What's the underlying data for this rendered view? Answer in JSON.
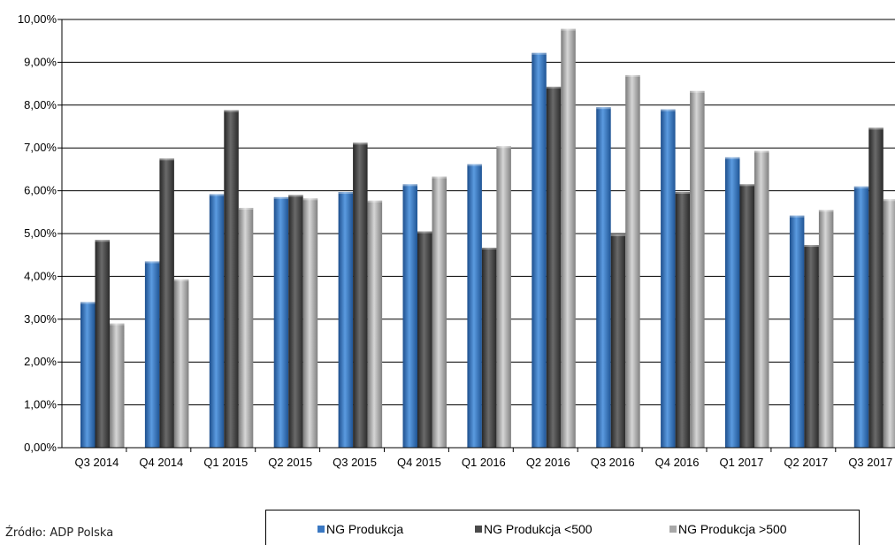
{
  "chart_data": {
    "type": "bar",
    "categories": [
      "Q3 2014",
      "Q4 2014",
      "Q1 2015",
      "Q2 2015",
      "Q3 2015",
      "Q4 2015",
      "Q1 2016",
      "Q2 2016",
      "Q3 2016",
      "Q4 2016",
      "Q1 2017",
      "Q2 2017",
      "Q3 2017"
    ],
    "series": [
      {
        "name": "NG Produkcja",
        "color": "#3a78c2",
        "values": [
          3.4,
          4.35,
          5.92,
          5.85,
          5.97,
          6.15,
          6.62,
          9.22,
          7.95,
          7.9,
          6.78,
          5.42,
          6.1
        ]
      },
      {
        "name": "NG Produkcja <500",
        "color": "#4a4a4a",
        "values": [
          4.85,
          6.75,
          7.88,
          5.9,
          7.12,
          5.05,
          4.67,
          8.43,
          4.98,
          5.97,
          6.15,
          4.73,
          7.47
        ]
      },
      {
        "name": "NG Produkcja >500",
        "color": "#a8a8a8",
        "values": [
          2.9,
          3.93,
          5.6,
          5.82,
          5.77,
          6.33,
          7.04,
          9.78,
          8.7,
          8.33,
          6.93,
          5.55,
          5.8
        ]
      }
    ],
    "y_ticks": [
      "0,00%",
      "1,00%",
      "2,00%",
      "3,00%",
      "4,00%",
      "5,00%",
      "6,00%",
      "7,00%",
      "8,00%",
      "9,00%",
      "10,00%"
    ],
    "ylim": [
      0,
      10
    ],
    "grid": true,
    "legend_position": "bottom-right",
    "title": "",
    "xlabel": "",
    "ylabel": ""
  },
  "source_text": "Źródło: ADP Polska"
}
